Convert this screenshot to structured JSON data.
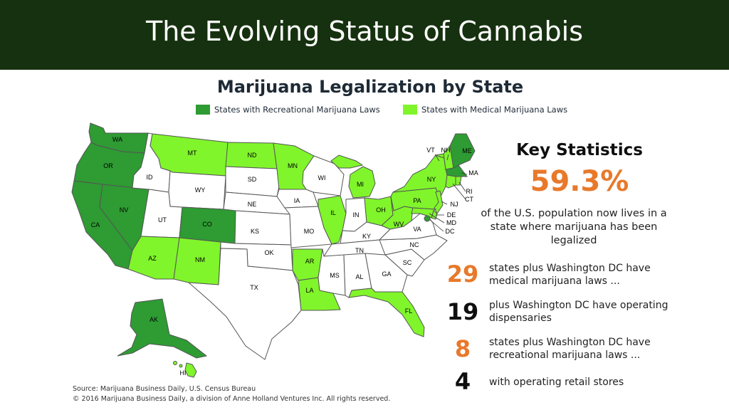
{
  "slide_title": "The Evolving Status of Cannabis",
  "map": {
    "title": "Marijuana Legalization by State",
    "legend": {
      "recreational": "States with Recreational Marijuana Laws",
      "medical": "States with Medical Marijuana Laws"
    },
    "colors": {
      "recreational": "#2e9b33",
      "medical": "#80f52b",
      "none": "#ffffff",
      "border": "#555555"
    },
    "state_status": {
      "WA": "recreational",
      "OR": "recreational",
      "CA": "recreational",
      "NV": "recreational",
      "CO": "recreational",
      "AK": "recreational",
      "MA": "recreational",
      "ME": "recreational",
      "MT": "medical",
      "ND": "medical",
      "MN": "medical",
      "AZ": "medical",
      "NM": "medical",
      "AR": "medical",
      "LA": "medical",
      "FL": "medical",
      "IL": "medical",
      "MI": "medical",
      "OH": "medical",
      "PA": "medical",
      "NY": "medical",
      "NJ": "medical",
      "DE": "medical",
      "MD": "medical",
      "VT": "medical",
      "NH": "medical",
      "RI": "medical",
      "CT": "medical",
      "HI": "medical",
      "WV": "medical",
      "ID": "none",
      "WY": "none",
      "SD": "none",
      "UT": "none",
      "NE": "none",
      "KS": "none",
      "OK": "none",
      "TX": "none",
      "IA": "none",
      "MO": "none",
      "WI": "none",
      "IN": "none",
      "KY": "none",
      "TN": "none",
      "MS": "none",
      "AL": "none",
      "GA": "none",
      "SC": "none",
      "NC": "none",
      "VA": "none"
    },
    "state_labels": {
      "WA": "WA",
      "OR": "OR",
      "CA": "CA",
      "NV": "NV",
      "ID": "ID",
      "MT": "MT",
      "WY": "WY",
      "UT": "UT",
      "AZ": "AZ",
      "CO": "CO",
      "NM": "NM",
      "ND": "ND",
      "SD": "SD",
      "NE": "NE",
      "KS": "KS",
      "OK": "OK",
      "TX": "TX",
      "MN": "MN",
      "IA": "IA",
      "MO": "MO",
      "AR": "AR",
      "LA": "LA",
      "WI": "WI",
      "IL": "IL",
      "MI": "MI",
      "IN": "IN",
      "OH": "OH",
      "KY": "KY",
      "TN": "TN",
      "MS": "MS",
      "AL": "AL",
      "GA": "GA",
      "FL": "FL",
      "SC": "SC",
      "NC": "NC",
      "VA": "VA",
      "WV": "WV",
      "PA": "PA",
      "NY": "NY",
      "VT": "VT",
      "NH": "NH",
      "ME": "ME",
      "MA": "MA",
      "RI": "RI",
      "CT": "CT",
      "NJ": "NJ",
      "DE": "DE",
      "MD": "MD",
      "DC": "DC",
      "AK": "AK",
      "HI": "HI"
    }
  },
  "key_statistics": {
    "title": "Key Statistics",
    "headline_value": "59.3%",
    "headline_desc": "of the U.S. population now lives in a state where marijuana has been legalized",
    "items": [
      {
        "number": "29",
        "color": "#e8792a",
        "text": "states plus Washington DC have medical marijuana laws ..."
      },
      {
        "number": "19",
        "color": "#0f0f10",
        "text": "plus Washington DC have operating dispensaries"
      },
      {
        "number": "8",
        "color": "#e8792a",
        "text": "states plus Washington DC have recreational marijuana laws ..."
      },
      {
        "number": "4",
        "color": "#0f0f10",
        "text": "with operating retail stores"
      }
    ]
  },
  "source": {
    "line1": "Source: Marijuana Business Daily, U.S. Census Bureau",
    "line2": "© 2016 Marijuana Business Daily, a division of Anne Holland Ventures Inc. All rights reserved."
  }
}
